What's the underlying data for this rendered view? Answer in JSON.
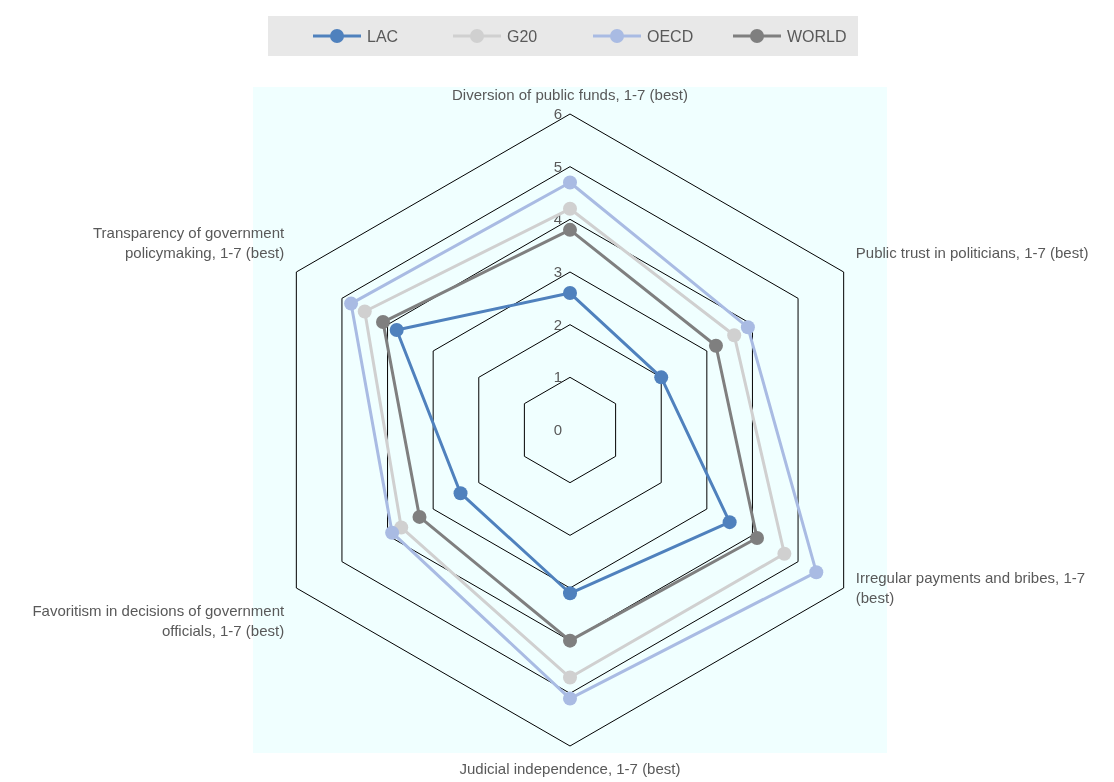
{
  "chart_data": {
    "type": "radar",
    "categories": [
      "Diversion of public funds, 1-7 (best)",
      "Public trust in politicians, 1-7 (best)",
      "Irregular payments and bribes, 1-7 (best)",
      "Judicial independence, 1-7 (best)",
      "Favoritism in decisions of government officials, 1-7 (best)",
      "Transparency of government policymaking, 1-7 (best)"
    ],
    "series": [
      {
        "name": "LAC",
        "color": "#4f81bd",
        "values": [
          2.6,
          2.0,
          3.5,
          3.1,
          2.4,
          3.8
        ]
      },
      {
        "name": "G20",
        "color": "#d0d0d0",
        "values": [
          4.2,
          3.6,
          4.7,
          4.7,
          3.7,
          4.5
        ]
      },
      {
        "name": "OECD",
        "color": "#a9bbe3",
        "values": [
          4.7,
          3.9,
          5.4,
          5.1,
          3.9,
          4.8
        ]
      },
      {
        "name": "WORLD",
        "color": "#7f7f7f",
        "values": [
          3.8,
          3.2,
          4.1,
          4.0,
          3.3,
          4.1
        ]
      }
    ],
    "ylim": [
      0,
      6
    ],
    "yticks": [
      0,
      1,
      2,
      3,
      4,
      5,
      6
    ],
    "grid": true,
    "legend": "top",
    "marker": "circle"
  }
}
